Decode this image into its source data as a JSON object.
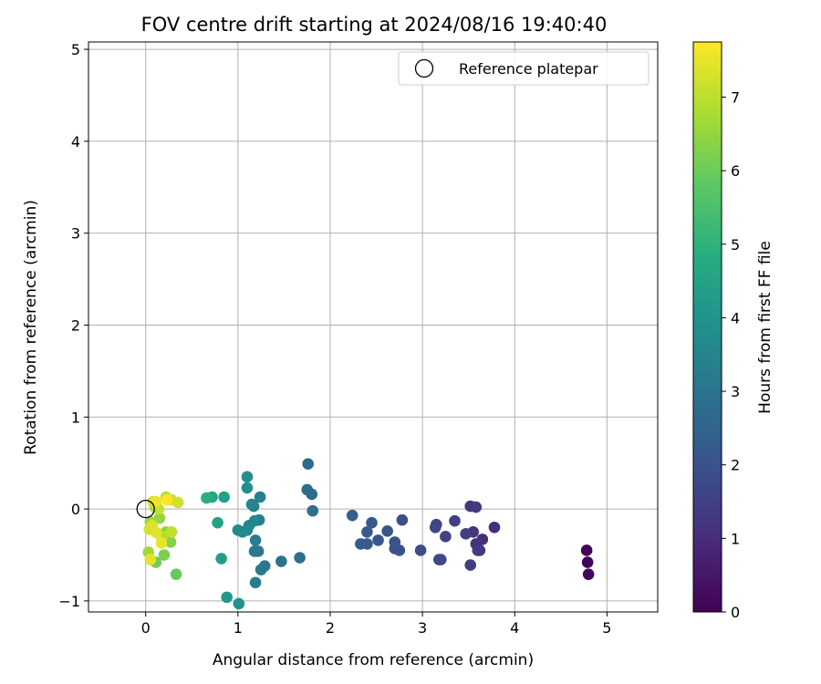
{
  "chart_data": {
    "type": "scatter",
    "title": "FOV centre drift starting at 2024/08/16 19:40:40",
    "xlabel": "Angular distance from reference (arcmin)",
    "ylabel": "Rotation from reference (arcmin)",
    "xlim": [
      -0.62,
      5.55
    ],
    "ylim": [
      -1.12,
      5.08
    ],
    "xticks": [
      "0",
      "1",
      "2",
      "3",
      "4",
      "5"
    ],
    "yticks": [
      "−1",
      "0",
      "1",
      "2",
      "3",
      "4",
      "5"
    ],
    "grid": true,
    "legend": {
      "placement": "top-right",
      "entries": [
        "Reference platepar"
      ]
    },
    "reference_point": {
      "x": 0,
      "y": 0,
      "label": "Reference platepar"
    },
    "colorbar": {
      "label": "Hours from first FF file",
      "range": [
        0,
        7.75
      ],
      "ticks": [
        "0",
        "1",
        "2",
        "3",
        "4",
        "5",
        "6",
        "7"
      ],
      "colormap": "viridis"
    },
    "points": [
      {
        "x": 4.78,
        "y": -0.45,
        "t": 0.05
      },
      {
        "x": 4.79,
        "y": -0.58,
        "t": 0.1
      },
      {
        "x": 4.8,
        "y": -0.71,
        "t": 0.15
      },
      {
        "x": 3.78,
        "y": -0.2,
        "t": 1.0
      },
      {
        "x": 3.65,
        "y": -0.33,
        "t": 1.05
      },
      {
        "x": 3.62,
        "y": -0.45,
        "t": 1.1
      },
      {
        "x": 3.58,
        "y": -0.38,
        "t": 1.15
      },
      {
        "x": 3.55,
        "y": -0.25,
        "t": 1.2
      },
      {
        "x": 3.52,
        "y": 0.03,
        "t": 1.25
      },
      {
        "x": 3.58,
        "y": 0.02,
        "t": 1.3
      },
      {
        "x": 3.6,
        "y": -0.45,
        "t": 1.35
      },
      {
        "x": 3.52,
        "y": -0.61,
        "t": 1.4
      },
      {
        "x": 3.47,
        "y": -0.27,
        "t": 1.45
      },
      {
        "x": 3.35,
        "y": -0.13,
        "t": 1.5
      },
      {
        "x": 3.25,
        "y": -0.3,
        "t": 1.55
      },
      {
        "x": 3.15,
        "y": -0.17,
        "t": 1.6
      },
      {
        "x": 3.14,
        "y": -0.2,
        "t": 1.65
      },
      {
        "x": 3.2,
        "y": -0.55,
        "t": 1.7
      },
      {
        "x": 3.18,
        "y": -0.55,
        "t": 1.75
      },
      {
        "x": 2.98,
        "y": -0.45,
        "t": 1.8
      },
      {
        "x": 2.78,
        "y": -0.12,
        "t": 1.85
      },
      {
        "x": 2.75,
        "y": -0.45,
        "t": 1.9
      },
      {
        "x": 2.7,
        "y": -0.43,
        "t": 1.95
      },
      {
        "x": 2.7,
        "y": -0.36,
        "t": 2.0
      },
      {
        "x": 2.62,
        "y": -0.24,
        "t": 2.05
      },
      {
        "x": 2.52,
        "y": -0.34,
        "t": 2.1
      },
      {
        "x": 2.45,
        "y": -0.15,
        "t": 2.15
      },
      {
        "x": 2.4,
        "y": -0.25,
        "t": 2.2
      },
      {
        "x": 2.4,
        "y": -0.38,
        "t": 2.25
      },
      {
        "x": 2.33,
        "y": -0.38,
        "t": 2.3
      },
      {
        "x": 2.24,
        "y": -0.07,
        "t": 2.35
      },
      {
        "x": 1.8,
        "y": 0.16,
        "t": 2.7
      },
      {
        "x": 1.76,
        "y": 0.49,
        "t": 2.75
      },
      {
        "x": 1.75,
        "y": 0.21,
        "t": 2.8
      },
      {
        "x": 1.81,
        "y": -0.02,
        "t": 2.85
      },
      {
        "x": 1.67,
        "y": -0.53,
        "t": 2.9
      },
      {
        "x": 1.47,
        "y": -0.57,
        "t": 3.0
      },
      {
        "x": 1.29,
        "y": -0.62,
        "t": 3.05
      },
      {
        "x": 1.25,
        "y": -0.66,
        "t": 3.1
      },
      {
        "x": 1.22,
        "y": -0.46,
        "t": 3.15
      },
      {
        "x": 1.18,
        "y": -0.46,
        "t": 3.2
      },
      {
        "x": 1.19,
        "y": -0.8,
        "t": 3.25
      },
      {
        "x": 1.19,
        "y": -0.34,
        "t": 3.3
      },
      {
        "x": 1.23,
        "y": -0.12,
        "t": 3.35
      },
      {
        "x": 1.24,
        "y": 0.13,
        "t": 3.4
      },
      {
        "x": 1.17,
        "y": 0.03,
        "t": 3.45
      },
      {
        "x": 1.15,
        "y": 0.05,
        "t": 3.5
      },
      {
        "x": 1.18,
        "y": -0.13,
        "t": 3.55
      },
      {
        "x": 1.12,
        "y": -0.18,
        "t": 3.6
      },
      {
        "x": 1.1,
        "y": -0.23,
        "t": 3.65
      },
      {
        "x": 1.05,
        "y": -0.25,
        "t": 3.7
      },
      {
        "x": 1.0,
        "y": -0.23,
        "t": 3.75
      },
      {
        "x": 1.1,
        "y": 0.35,
        "t": 3.8
      },
      {
        "x": 1.1,
        "y": 0.23,
        "t": 3.85
      },
      {
        "x": 1.01,
        "y": -1.03,
        "t": 3.95
      },
      {
        "x": 0.88,
        "y": -0.96,
        "t": 4.1
      },
      {
        "x": 0.82,
        "y": -0.54,
        "t": 4.3
      },
      {
        "x": 0.85,
        "y": 0.13,
        "t": 4.4
      },
      {
        "x": 0.78,
        "y": -0.15,
        "t": 4.5
      },
      {
        "x": 0.72,
        "y": 0.13,
        "t": 4.6
      },
      {
        "x": 0.66,
        "y": 0.12,
        "t": 4.9
      },
      {
        "x": 0.33,
        "y": -0.71,
        "t": 5.9
      },
      {
        "x": 0.11,
        "y": -0.58,
        "t": 6.05
      },
      {
        "x": 0.2,
        "y": -0.5,
        "t": 6.2
      },
      {
        "x": 0.27,
        "y": -0.36,
        "t": 6.3
      },
      {
        "x": 0.22,
        "y": -0.25,
        "t": 6.4
      },
      {
        "x": 0.15,
        "y": -0.1,
        "t": 6.5
      },
      {
        "x": 0.05,
        "y": -0.14,
        "t": 6.6
      },
      {
        "x": 0.03,
        "y": -0.47,
        "t": 6.7
      },
      {
        "x": 0.1,
        "y": 0.02,
        "t": 6.8
      },
      {
        "x": 0.18,
        "y": -0.3,
        "t": 6.9
      },
      {
        "x": 0.22,
        "y": 0.13,
        "t": 7.0
      },
      {
        "x": 0.28,
        "y": -0.25,
        "t": 7.05
      },
      {
        "x": 0.14,
        "y": 0.0,
        "t": 7.1
      },
      {
        "x": 0.08,
        "y": 0.08,
        "t": 7.15
      },
      {
        "x": 0.35,
        "y": 0.07,
        "t": 7.2
      },
      {
        "x": 0.28,
        "y": 0.1,
        "t": 7.25
      },
      {
        "x": 0.04,
        "y": -0.22,
        "t": 7.3
      },
      {
        "x": 0.07,
        "y": -0.18,
        "t": 7.35
      },
      {
        "x": 0.12,
        "y": -0.26,
        "t": 7.4
      },
      {
        "x": 0.05,
        "y": -0.55,
        "t": 7.45
      },
      {
        "x": 0.17,
        "y": -0.37,
        "t": 7.5
      },
      {
        "x": 0.11,
        "y": 0.08,
        "t": 7.55
      },
      {
        "x": 0.23,
        "y": 0.1,
        "t": 7.7
      }
    ]
  }
}
